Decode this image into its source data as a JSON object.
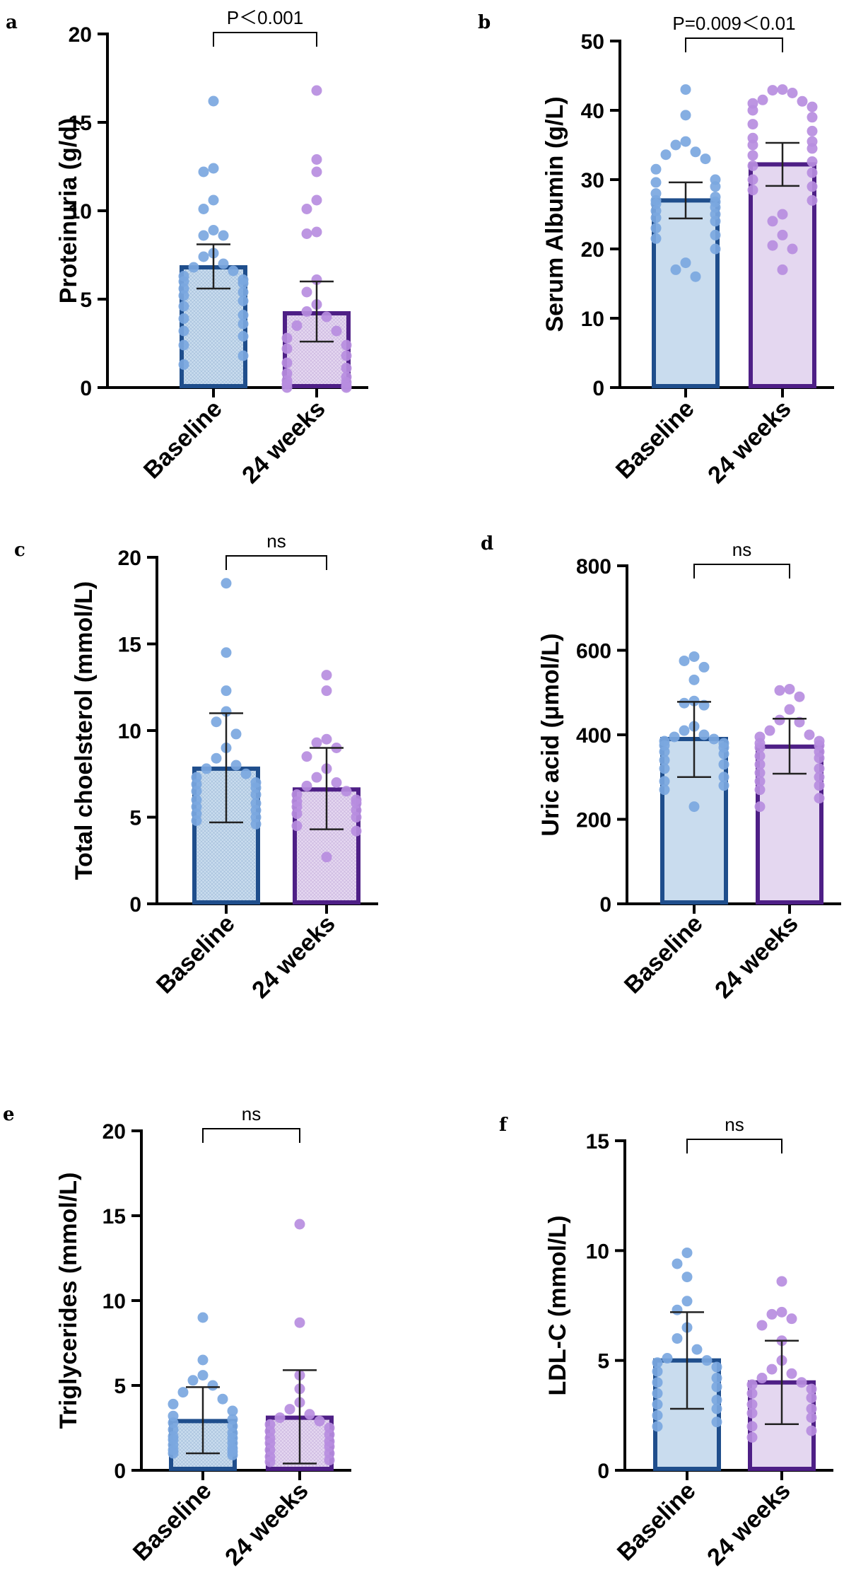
{
  "chart_data": [
    {
      "panel": "a",
      "type": "bar",
      "ylabel": "Proteinuria (g/d)",
      "ylim": [
        0,
        20
      ],
      "yticks": [
        0,
        5,
        10,
        15,
        20
      ],
      "categories": [
        "Baseline",
        "24 weeks"
      ],
      "means": [
        6.8,
        4.2
      ],
      "sd_upper": [
        8.1,
        6.0
      ],
      "sd_lower": [
        5.6,
        2.6
      ],
      "significance": "P＜0.001",
      "points": [
        [
          16.2,
          12.4,
          12.2,
          10.6,
          10.1,
          8.9,
          8.6,
          8.6,
          7.6,
          7.4,
          7.0,
          6.8,
          6.6,
          6.3,
          6.1,
          6.0,
          5.9,
          5.6,
          5.4,
          5.2,
          4.9,
          4.6,
          4.1,
          3.9,
          3.6,
          3.2,
          2.9,
          2.4,
          1.8,
          1.3
        ],
        [
          16.8,
          12.9,
          12.2,
          10.6,
          10.1,
          8.8,
          8.7,
          6.1,
          5.4,
          4.7,
          4.3,
          4.0,
          3.5,
          3.2,
          2.8,
          2.4,
          2.2,
          1.8,
          1.4,
          1.1,
          0.8,
          0.6,
          0.4,
          0.3,
          0.2,
          0.1,
          0.0,
          0.0
        ]
      ]
    },
    {
      "panel": "b",
      "type": "bar",
      "ylabel": "Serum Albumin (g/L)",
      "ylim": [
        0,
        50
      ],
      "yticks": [
        0,
        10,
        20,
        30,
        40,
        50
      ],
      "categories": [
        "Baseline",
        "24 weeks"
      ],
      "means": [
        27.0,
        32.2
      ],
      "sd_upper": [
        29.6,
        35.3
      ],
      "sd_lower": [
        24.4,
        29.1
      ],
      "significance": "P=0.009＜0.01",
      "points": [
        [
          43.0,
          39.3,
          35.5,
          35.0,
          34.0,
          33.6,
          33.0,
          31.5,
          30.0,
          29.6,
          29.0,
          28.0,
          27.5,
          27.0,
          26.8,
          26.5,
          26.0,
          25.5,
          25.0,
          24.5,
          24.0,
          23.0,
          22.0,
          21.5,
          20.0,
          18.0,
          17.0,
          16.0
        ],
        [
          43.0,
          42.9,
          42.5,
          41.5,
          41.3,
          41.0,
          40.5,
          40.0,
          39.0,
          38.0,
          37.0,
          36.0,
          35.5,
          35.0,
          34.5,
          33.5,
          32.6,
          32.0,
          31.0,
          30.0,
          29.0,
          28.5,
          27.0,
          25.0,
          24.0,
          22.0,
          20.5,
          20.0,
          17.0
        ]
      ]
    },
    {
      "panel": "c",
      "type": "bar",
      "ylabel": "Total choelsterol (mmol/L)",
      "ylim": [
        0,
        20
      ],
      "yticks": [
        0,
        5,
        10,
        15,
        20
      ],
      "categories": [
        "Baseline",
        "24 weeks"
      ],
      "means": [
        7.8,
        6.6
      ],
      "sd_upper": [
        11.0,
        9.0
      ],
      "sd_lower": [
        4.7,
        4.3
      ],
      "significance": "ns",
      "points": [
        [
          18.5,
          14.5,
          12.3,
          11.1,
          10.5,
          9.8,
          9.0,
          8.4,
          8.0,
          7.8,
          7.5,
          7.3,
          7.0,
          6.9,
          6.7,
          6.5,
          6.3,
          6.0,
          5.8,
          5.6,
          5.4,
          5.2,
          5.0,
          4.8,
          4.6
        ],
        [
          13.2,
          12.3,
          9.5,
          9.3,
          9.0,
          8.5,
          7.8,
          7.3,
          7.0,
          6.8,
          6.5,
          6.3,
          6.0,
          5.9,
          5.8,
          5.6,
          5.4,
          5.2,
          5.0,
          4.5,
          4.2,
          2.7
        ]
      ]
    },
    {
      "panel": "d",
      "type": "bar",
      "ylabel": "Uric acid (μmol/L)",
      "ylim": [
        0,
        800
      ],
      "yticks": [
        0,
        200,
        400,
        600,
        800
      ],
      "categories": [
        "Baseline",
        "24 weeks"
      ],
      "means": [
        390,
        372
      ],
      "sd_upper": [
        478,
        438
      ],
      "sd_lower": [
        300,
        308
      ],
      "significance": "ns",
      "points": [
        [
          585,
          575,
          560,
          530,
          480,
          475,
          470,
          420,
          410,
          400,
          395,
          390,
          385,
          380,
          375,
          370,
          360,
          355,
          340,
          330,
          320,
          300,
          290,
          280,
          270,
          230
        ],
        [
          508,
          505,
          490,
          460,
          435,
          430,
          410,
          400,
          395,
          385,
          380,
          375,
          370,
          360,
          350,
          345,
          330,
          320,
          310,
          300,
          290,
          280,
          270,
          250,
          230
        ]
      ]
    },
    {
      "panel": "e",
      "type": "bar",
      "ylabel": "Triglycerides (mmol/L)",
      "ylim": [
        0,
        20
      ],
      "yticks": [
        0,
        5,
        10,
        15,
        20
      ],
      "categories": [
        "Baseline",
        "24 weeks"
      ],
      "means": [
        2.9,
        3.1
      ],
      "sd_upper": [
        4.9,
        5.9
      ],
      "sd_lower": [
        1.0,
        0.4
      ],
      "significance": "ns",
      "points": [
        [
          9.0,
          6.5,
          5.6,
          5.3,
          5.0,
          4.6,
          4.2,
          3.9,
          3.5,
          3.2,
          3.0,
          2.8,
          2.6,
          2.4,
          2.2,
          2.0,
          1.9,
          1.8,
          1.6,
          1.5,
          1.3,
          1.2,
          1.1,
          1.0,
          0.9
        ],
        [
          14.5,
          8.7,
          5.6,
          4.8,
          4.0,
          3.6,
          3.3,
          3.1,
          2.9,
          2.7,
          2.5,
          2.3,
          2.1,
          1.9,
          1.7,
          1.6,
          1.4,
          1.2,
          1.0,
          0.8,
          0.6,
          0.5
        ]
      ]
    },
    {
      "panel": "f",
      "type": "bar",
      "ylabel": "LDL-C (mmol/L)",
      "ylim": [
        0,
        15
      ],
      "yticks": [
        0,
        5,
        10,
        15
      ],
      "categories": [
        "Baseline",
        "24 weeks"
      ],
      "means": [
        5.0,
        4.0
      ],
      "sd_upper": [
        7.2,
        5.9
      ],
      "sd_lower": [
        2.8,
        2.1
      ],
      "significance": "ns",
      "points": [
        [
          9.9,
          9.4,
          8.8,
          7.7,
          7.3,
          6.5,
          6.0,
          5.5,
          5.1,
          5.0,
          4.9,
          4.7,
          4.5,
          4.2,
          4.0,
          3.8,
          3.5,
          3.2,
          3.0,
          2.8,
          2.5,
          2.2,
          2.0
        ],
        [
          8.6,
          7.2,
          7.1,
          6.9,
          6.6,
          5.9,
          5.0,
          4.6,
          4.4,
          4.2,
          4.0,
          3.9,
          3.7,
          3.5,
          3.3,
          3.0,
          2.8,
          2.6,
          2.4,
          2.0,
          1.8,
          1.5
        ]
      ]
    }
  ],
  "colors": {
    "baseline_edge": "#1f4e8c",
    "baseline_fill": "#c9dcee",
    "baseline_dot": "#7ba7df",
    "weeks_edge": "#4e1f86",
    "weeks_fill": "#e4d7f0",
    "weeks_dot": "#b78de0",
    "axis": "#000000"
  }
}
